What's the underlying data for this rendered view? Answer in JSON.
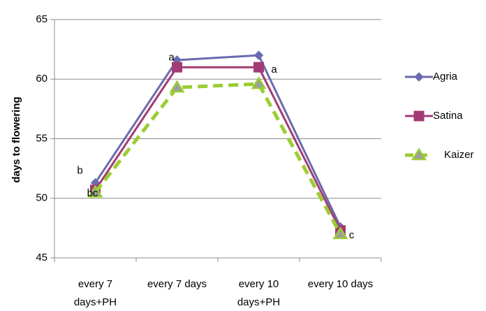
{
  "chart_data": {
    "type": "line",
    "ylabel": "days to flowering",
    "xlabel": "",
    "title": "",
    "ylim": [
      45,
      65
    ],
    "yticks": [
      45,
      50,
      55,
      60,
      65
    ],
    "grid": true,
    "legend_position": "right",
    "categories": [
      [
        "every 7",
        "days+PH"
      ],
      [
        "every 7 days"
      ],
      [
        "every 10",
        "days+PH"
      ],
      [
        "every 10 days"
      ]
    ],
    "series": [
      {
        "name": "Agria",
        "values": [
          51.3,
          61.6,
          62.0,
          47.6
        ],
        "color": "#6A6AAE",
        "marker": "diamond",
        "dash": "solid"
      },
      {
        "name": "Satina",
        "values": [
          50.7,
          61.0,
          61.0,
          47.3
        ],
        "color": "#A33B73",
        "marker": "square",
        "dash": "solid"
      },
      {
        "name": "Kaizer",
        "values": [
          50.5,
          59.3,
          59.6,
          47.0
        ],
        "color": "#9ACD32",
        "marker": "triangle",
        "dash": "dashed"
      }
    ],
    "annotations": [
      {
        "text": "b",
        "category": 0,
        "value": 52.3
      },
      {
        "text": "bc",
        "category": 0,
        "value": 50.4
      },
      {
        "text": "a",
        "category": 1,
        "value": 61.8
      },
      {
        "text": "a",
        "category": 2,
        "value": 61.0
      },
      {
        "text": "c",
        "category": 3,
        "value": 47.0
      }
    ]
  }
}
